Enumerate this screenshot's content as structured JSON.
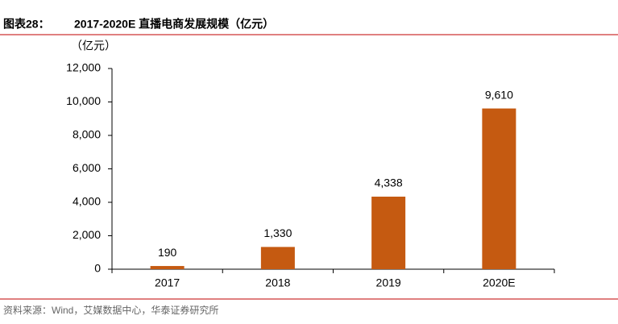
{
  "chart_data": {
    "type": "bar",
    "figure_label": "图表28：",
    "title": "2017-2020E 直播电商发展规模（亿元）",
    "unit": "（亿元）",
    "source": "资料来源：Wind，艾媒数据中心，华泰证券研究所",
    "categories": [
      "2017",
      "2018",
      "2019",
      "2020E"
    ],
    "values": [
      190,
      1330,
      4338,
      9610
    ],
    "value_labels": [
      "190",
      "1,330",
      "4,338",
      "9,610"
    ],
    "color": "#c55a11",
    "ylim": [
      0,
      12000
    ],
    "yticks": [
      0,
      {
        "value": 2000,
        "label": "2,000"
      },
      {
        "value": 4000,
        "label": "4,000"
      },
      {
        "value": 6000,
        "label": "6,000"
      },
      {
        "value": 8000,
        "label": "8,000"
      },
      {
        "value": 10000,
        "label": "10,000"
      },
      {
        "value": 12000,
        "label": "12,000"
      }
    ]
  }
}
